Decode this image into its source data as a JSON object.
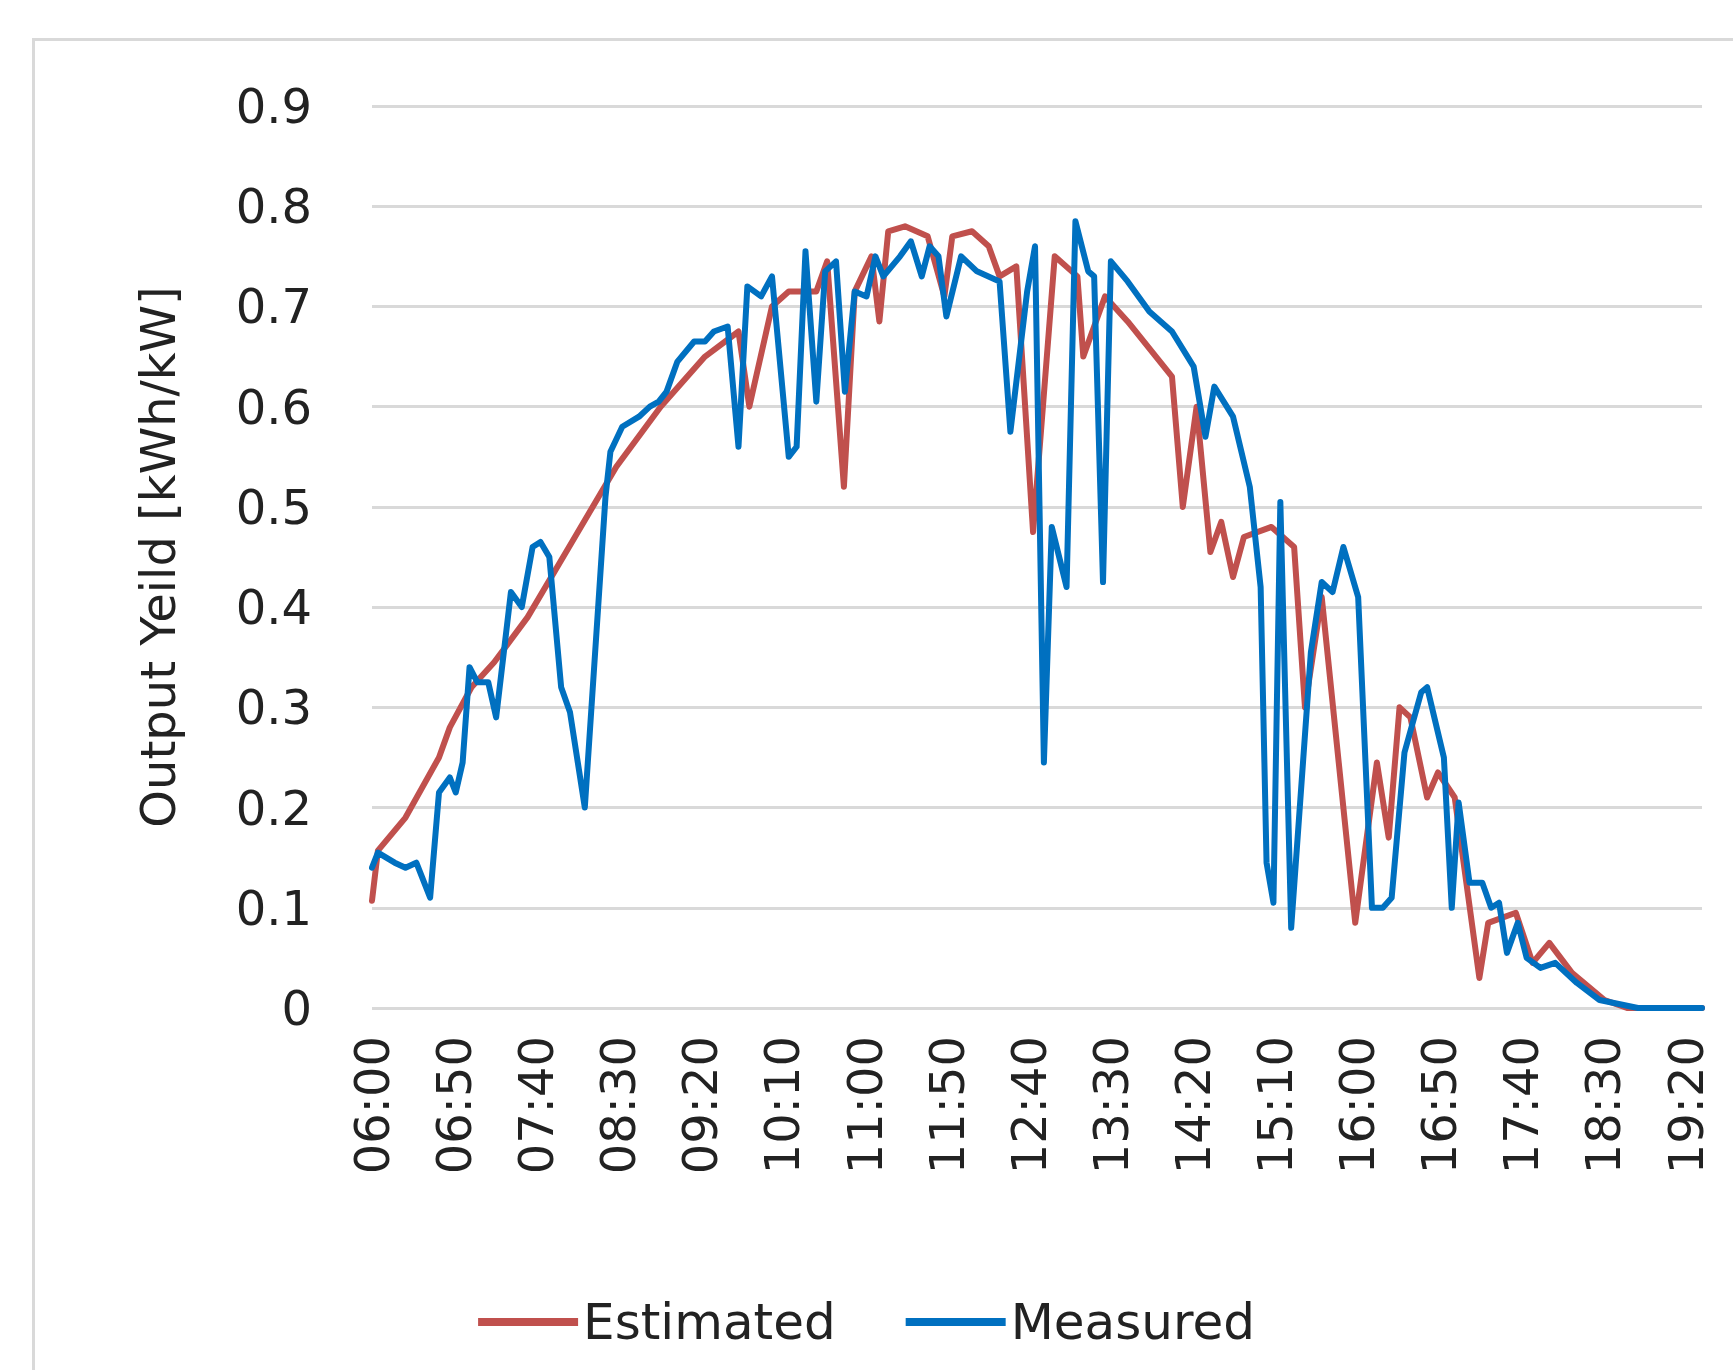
{
  "chart_data": {
    "type": "line",
    "ylabel": "Output Yeild [kWh/kW]",
    "xlim": [
      6,
      19.5
    ],
    "xticks": [
      {
        "value": 6,
        "label": "06:00"
      },
      {
        "value": 6.8333,
        "label": "06:50"
      },
      {
        "value": 7.6667,
        "label": "07:40"
      },
      {
        "value": 8.5,
        "label": "08:30"
      },
      {
        "value": 9.3333,
        "label": "09:20"
      },
      {
        "value": 10.1667,
        "label": "10:10"
      },
      {
        "value": 11,
        "label": "11:00"
      },
      {
        "value": 11.8333,
        "label": "11:50"
      },
      {
        "value": 12.6667,
        "label": "12:40"
      },
      {
        "value": 13.5,
        "label": "13:30"
      },
      {
        "value": 14.3333,
        "label": "14:20"
      },
      {
        "value": 15.1667,
        "label": "15:10"
      },
      {
        "value": 16,
        "label": "16:00"
      },
      {
        "value": 16.8333,
        "label": "16:50"
      },
      {
        "value": 17.6667,
        "label": "17:40"
      },
      {
        "value": 18.5,
        "label": "18:30"
      },
      {
        "value": 19.3333,
        "label": "19:20"
      }
    ],
    "ylim": [
      0,
      0.9
    ],
    "yticks": [
      0,
      0.1,
      0.2,
      0.3,
      0.4,
      0.5,
      0.6,
      0.7,
      0.8,
      0.9
    ],
    "grid": "y",
    "legend": "bottom",
    "marker": "none",
    "line_style": "solid",
    "series": [
      {
        "name": "Estimated",
        "color": "#c0504d",
        "x": [
          6,
          6.06,
          6.34,
          6.68,
          6.79,
          7.01,
          7.24,
          7.58,
          8.03,
          8.48,
          8.93,
          9.38,
          9.72,
          9.83,
          10.06,
          10.23,
          10.51,
          10.62,
          10.79,
          10.9,
          11.07,
          11.15,
          11.24,
          11.41,
          11.64,
          11.81,
          11.89,
          12.09,
          12.26,
          12.37,
          12.54,
          12.71,
          12.93,
          13.16,
          13.22,
          13.44,
          13.67,
          14.12,
          14.23,
          14.37,
          14.51,
          14.62,
          14.74,
          14.85,
          15.13,
          15.36,
          15.47,
          15.64,
          15.98,
          16.2,
          16.32,
          16.43,
          16.54,
          16.71,
          16.82,
          16.99,
          17.24,
          17.33,
          17.61,
          17.78,
          17.95,
          18.18,
          18.51,
          18.74,
          19.5
        ],
        "values": [
          0.107,
          0.157,
          0.19,
          0.25,
          0.28,
          0.32,
          0.345,
          0.39,
          0.465,
          0.54,
          0.6,
          0.65,
          0.675,
          0.6,
          0.7,
          0.715,
          0.715,
          0.745,
          0.52,
          0.715,
          0.75,
          0.685,
          0.775,
          0.78,
          0.77,
          0.71,
          0.77,
          0.775,
          0.76,
          0.73,
          0.74,
          0.475,
          0.75,
          0.73,
          0.65,
          0.71,
          0.685,
          0.63,
          0.5,
          0.6,
          0.455,
          0.485,
          0.43,
          0.47,
          0.48,
          0.46,
          0.3,
          0.41,
          0.085,
          0.245,
          0.17,
          0.3,
          0.29,
          0.21,
          0.235,
          0.21,
          0.03,
          0.085,
          0.095,
          0.045,
          0.065,
          0.035,
          0.008,
          0,
          0
        ]
      },
      {
        "name": "Measured",
        "color": "#0070c0",
        "x": [
          6,
          6.06,
          6.23,
          6.34,
          6.45,
          6.51,
          6.59,
          6.68,
          6.79,
          6.85,
          6.92,
          6.99,
          7.07,
          7.18,
          7.26,
          7.41,
          7.52,
          7.63,
          7.71,
          7.8,
          7.92,
          8.01,
          8.16,
          8.37,
          8.42,
          8.54,
          8.71,
          8.82,
          8.91,
          8.99,
          9.1,
          9.27,
          9.38,
          9.47,
          9.61,
          9.72,
          9.81,
          9.95,
          10.06,
          10.23,
          10.31,
          10.4,
          10.51,
          10.6,
          10.71,
          10.8,
          10.9,
          11.02,
          11.11,
          11.19,
          11.36,
          11.47,
          11.58,
          11.66,
          11.75,
          11.83,
          11.98,
          12.14,
          12.37,
          12.48,
          12.65,
          12.73,
          12.82,
          12.9,
          13.05,
          13.14,
          13.27,
          13.33,
          13.42,
          13.5,
          13.67,
          13.89,
          14.12,
          14.34,
          14.46,
          14.55,
          14.74,
          14.91,
          15.02,
          15.08,
          15.15,
          15.22,
          15.33,
          15.53,
          15.64,
          15.75,
          15.86,
          16.01,
          16.15,
          16.26,
          16.35,
          16.48,
          16.65,
          16.71,
          16.88,
          16.96,
          17.03,
          17.14,
          17.27,
          17.36,
          17.44,
          17.52,
          17.63,
          17.72,
          17.86,
          18.01,
          18.23,
          18.46,
          18.85,
          19.5
        ],
        "values": [
          0.14,
          0.155,
          0.145,
          0.14,
          0.145,
          0.13,
          0.11,
          0.215,
          0.23,
          0.215,
          0.245,
          0.34,
          0.325,
          0.325,
          0.29,
          0.415,
          0.4,
          0.46,
          0.465,
          0.45,
          0.32,
          0.295,
          0.2,
          0.51,
          0.555,
          0.58,
          0.59,
          0.6,
          0.605,
          0.615,
          0.645,
          0.665,
          0.665,
          0.675,
          0.68,
          0.56,
          0.72,
          0.71,
          0.73,
          0.55,
          0.56,
          0.755,
          0.605,
          0.735,
          0.745,
          0.615,
          0.715,
          0.71,
          0.75,
          0.73,
          0.75,
          0.765,
          0.73,
          0.76,
          0.75,
          0.69,
          0.75,
          0.735,
          0.725,
          0.575,
          0.715,
          0.76,
          0.245,
          0.48,
          0.42,
          0.785,
          0.735,
          0.73,
          0.425,
          0.745,
          0.725,
          0.695,
          0.675,
          0.64,
          0.57,
          0.62,
          0.59,
          0.52,
          0.42,
          0.145,
          0.105,
          0.505,
          0.08,
          0.355,
          0.425,
          0.415,
          0.46,
          0.41,
          0.1,
          0.1,
          0.11,
          0.255,
          0.315,
          0.32,
          0.25,
          0.1,
          0.205,
          0.125,
          0.125,
          0.1,
          0.105,
          0.055,
          0.085,
          0.05,
          0.04,
          0.045,
          0.025,
          0.008,
          0,
          0
        ]
      }
    ]
  }
}
